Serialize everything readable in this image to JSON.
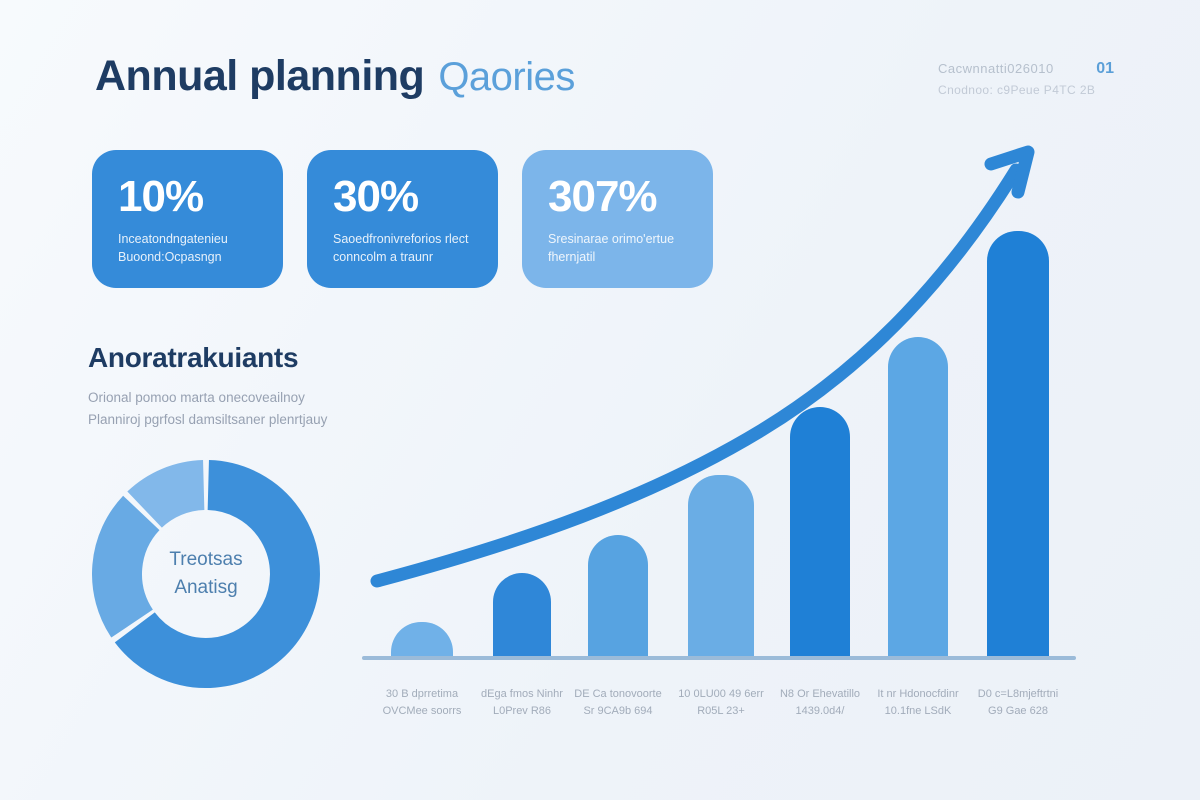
{
  "header": {
    "title_bold": "Annual planning",
    "title_light": "Qaories",
    "meta_line1": "Cacwnnatti026010",
    "meta_number": "01",
    "meta_line2": "Cnodnoo: c9Peue P4TC 2B"
  },
  "stat_cards": [
    {
      "value": "10%",
      "line1": "Inceatondngatenieu",
      "line2": "Buoond:Ocpasngn",
      "bg": "#358bd9"
    },
    {
      "value": "30%",
      "line1": "Saoedfronivreforios rlect",
      "line2": "conncolm a traunr",
      "bg": "#358bd9"
    },
    {
      "value": "307%",
      "line1": "Sresinarae orimo'ertue",
      "line2": "fhernjatil",
      "bg": "#7cb5ea"
    }
  ],
  "section": {
    "heading": "Anoratrakuiants",
    "sub_line1": "Orional pomoo marta onecoveailnoy",
    "sub_line2": "Planniroj pgrfosl damsiltsaner plenrtjauy"
  },
  "chart_data": [
    {
      "type": "pie",
      "subtype": "donut",
      "title": "Treotsas Anatisg",
      "center_label_line1": "Treotsas",
      "center_label_line2": "Anatisg",
      "segments": [
        {
          "name": "primary",
          "value": 66,
          "color": "#3d90da"
        },
        {
          "name": "secondary",
          "value": 22,
          "color": "#68aae4"
        },
        {
          "name": "tertiary",
          "value": 12,
          "color": "#82b8ea"
        }
      ],
      "legend_position": "none"
    },
    {
      "type": "bar",
      "title": "",
      "xlabel": "",
      "ylabel": "",
      "grid": false,
      "ylim": [
        0,
        450
      ],
      "unit": "relative-height-px",
      "categories": [
        [
          "30 B dprretima",
          "OVCMee soorrs"
        ],
        [
          "dEga fmos Ninhr",
          "L0Prev R86"
        ],
        [
          "DE Ca tonovoorte",
          "Sr 9CA9b 694"
        ],
        [
          "10 0LU00 49 6err",
          "R05L 23+"
        ],
        [
          "N8 Or Ehevatillo",
          "1439.0d4/"
        ],
        [
          "It nr Hdonocfdinr",
          "10.1fne LSdK"
        ],
        [
          "D0 c=L8mjeftrtni",
          "G9 Gae 628"
        ]
      ],
      "values": [
        38,
        87,
        125,
        185,
        253,
        323,
        429
      ],
      "bar_colors": [
        "#70b1e8",
        "#2f87d8",
        "#57a3e1",
        "#6aade5",
        "#1f80d6",
        "#5ca7e4",
        "#1f80d6"
      ],
      "trend_line": true
    }
  ],
  "colors": {
    "accent_dark": "#1e3c63",
    "accent_blue": "#358bd9",
    "light_blue": "#7cb5ea",
    "trend_arrow": "#2e87d6",
    "axis": "#9bbbd9",
    "background": "#f2f6fa"
  }
}
